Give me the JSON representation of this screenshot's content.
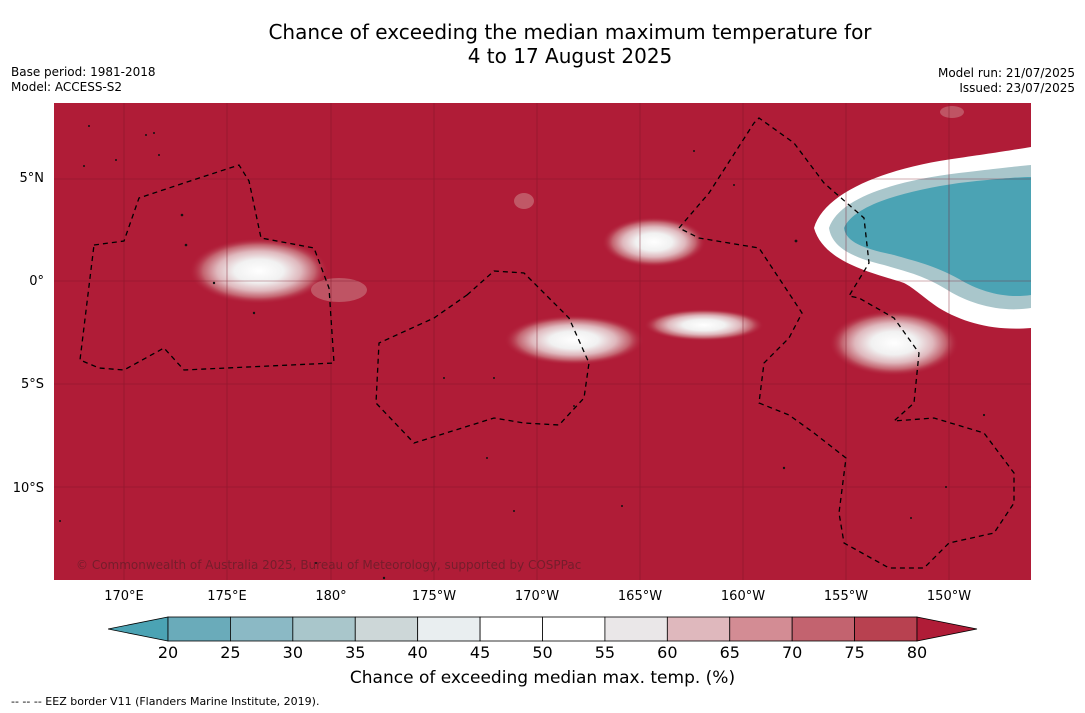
{
  "title": {
    "line1": "Chance of exceeding the median maximum temperature for",
    "line2": "4 to 17 August 2025"
  },
  "meta": {
    "base_period": "Base period: 1981-2018",
    "model": "Model: ACCESS-S2",
    "model_run": "Model run: 21/07/2025",
    "issued": "Issued: 23/07/2025"
  },
  "map": {
    "lat_labels": [
      "5°N",
      "0°",
      "5°S",
      "10°S"
    ],
    "lon_labels": [
      "170°E",
      "175°E",
      "180°",
      "175°W",
      "170°W",
      "165°W",
      "160°W",
      "155°W",
      "150°W"
    ],
    "copyright": "© Commonwealth of Australia 2025, Bureau of Meteorology, supported by COSPPac",
    "background_color": "#b01c37"
  },
  "colorbar": {
    "ticks": [
      "20",
      "25",
      "30",
      "35",
      "40",
      "45",
      "50",
      "55",
      "60",
      "65",
      "70",
      "75",
      "80"
    ],
    "colors": [
      "#6aabba",
      "#8bb9c5",
      "#a9c6cb",
      "#cdd7d8",
      "#e9eef0",
      "#ffffff",
      "#ffffff",
      "#eae7e8",
      "#dfb8bd",
      "#d38c94",
      "#c3636f",
      "#b84150"
    ],
    "under_color": "#4ba3b4",
    "over_color": "#b01c37",
    "label": "Chance of exceeding median max. temp. (%)"
  },
  "footnote": "--  --  -- EEZ border V11 (Flanders Marine Institute, 2019)."
}
